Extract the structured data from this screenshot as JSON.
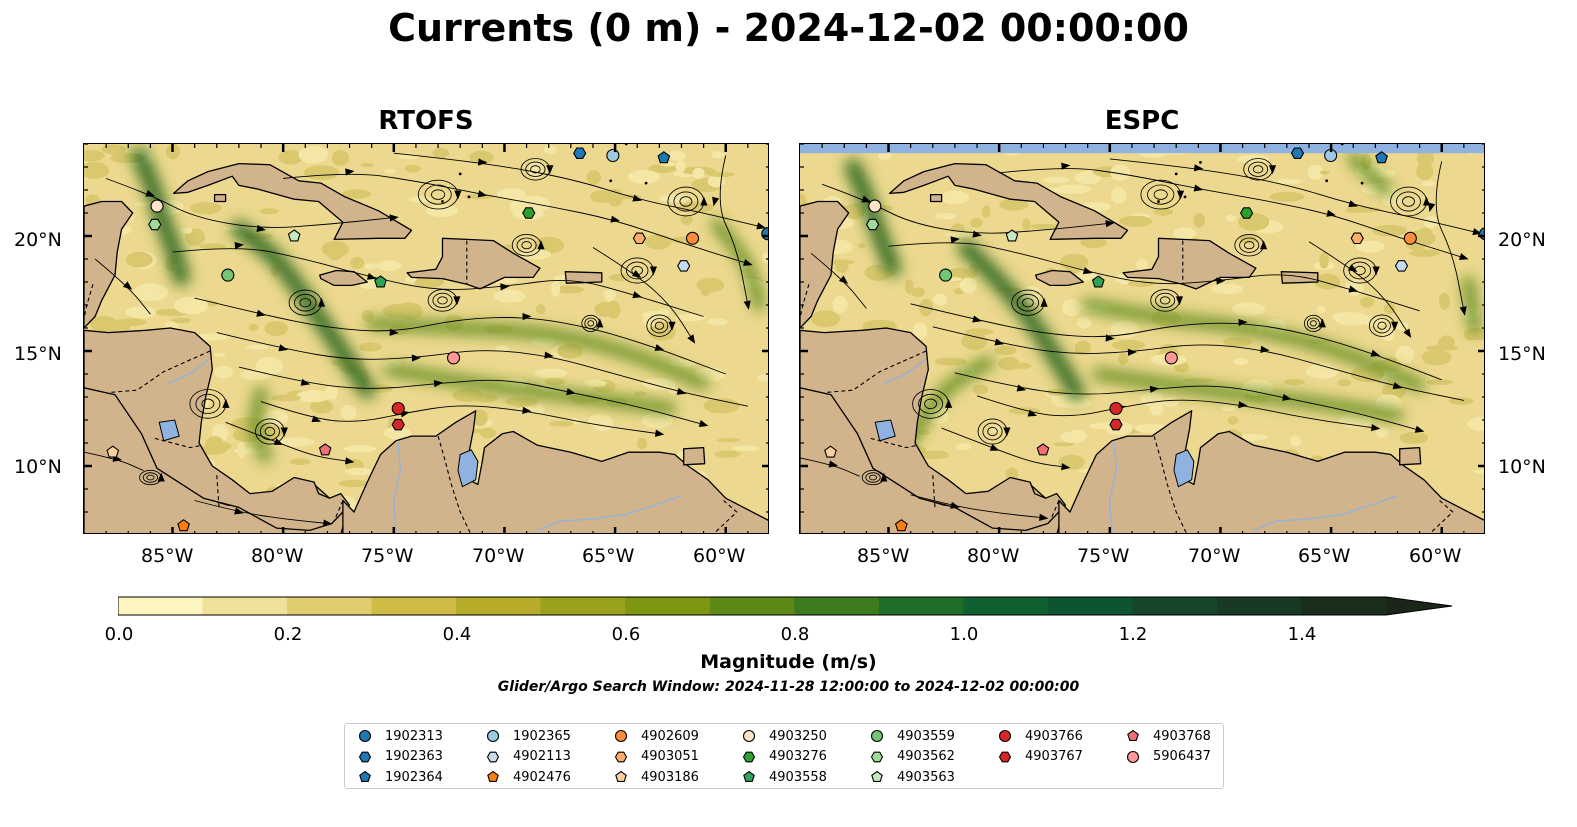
{
  "title": "Currents (0 m) - 2024-12-02 00:00:00",
  "panels": [
    {
      "id": "rtofs",
      "title": "RTOFS"
    },
    {
      "id": "espc",
      "title": "ESPC"
    }
  ],
  "map": {
    "lon_range": [
      -89,
      -58
    ],
    "lat_range": [
      7,
      24
    ],
    "lon_ticks": [
      "85°W",
      "80°W",
      "75°W",
      "70°W",
      "65°W",
      "60°W"
    ],
    "lat_ticks": [
      "20°N",
      "15°N",
      "10°N"
    ],
    "land_color": "#d2b48c",
    "water_color": "#8fb2e0",
    "coastline": "black",
    "borders": "dashed"
  },
  "colorbar": {
    "label": "Magnitude (m/s)",
    "min": 0.0,
    "max": 1.5,
    "step": 0.1,
    "extend": "max",
    "tick_labels": [
      "0.0",
      "0.2",
      "0.4",
      "0.6",
      "0.8",
      "1.0",
      "1.2",
      "1.4"
    ],
    "colors": [
      "#fdf5c0",
      "#efe19a",
      "#e0cd6e",
      "#cfbb45",
      "#b6ac2a",
      "#9aa11d",
      "#7d9712",
      "#5d8a16",
      "#3d7b1e",
      "#206d28",
      "#0f6130",
      "#0d5530",
      "#15462a",
      "#183923",
      "#1a2e1b",
      "#1a2617"
    ]
  },
  "search_window": "Glider/Argo Search Window: 2024-11-28 12:00:00 to 2024-12-02 00:00:00",
  "legend": {
    "columns": [
      [
        {
          "id": "1902313",
          "color": "#1f77b4",
          "marker": "circle"
        },
        {
          "id": "1902363",
          "color": "#1f77b4",
          "marker": "hexagon"
        },
        {
          "id": "1902364",
          "color": "#1f77b4",
          "marker": "pentagon"
        }
      ],
      [
        {
          "id": "1902365",
          "color": "#9ecae1",
          "marker": "circle"
        },
        {
          "id": "4902113",
          "color": "#c6dbef",
          "marker": "hexagon"
        },
        {
          "id": "4902476",
          "color": "#ff7f0e",
          "marker": "pentagon"
        }
      ],
      [
        {
          "id": "4902609",
          "color": "#fd8d3c",
          "marker": "circle"
        },
        {
          "id": "4903051",
          "color": "#fdae6b",
          "marker": "hexagon"
        },
        {
          "id": "4903186",
          "color": "#fdd0a2",
          "marker": "pentagon"
        }
      ],
      [
        {
          "id": "4903250",
          "color": "#fde4c8",
          "marker": "circle"
        },
        {
          "id": "4903276",
          "color": "#2ca02c",
          "marker": "hexagon"
        },
        {
          "id": "4903558",
          "color": "#31a354",
          "marker": "pentagon"
        }
      ],
      [
        {
          "id": "4903559",
          "color": "#74c476",
          "marker": "circle"
        },
        {
          "id": "4903562",
          "color": "#a1d99b",
          "marker": "hexagon"
        },
        {
          "id": "4903563",
          "color": "#c7e9c0",
          "marker": "pentagon"
        }
      ],
      [
        {
          "id": "4903766",
          "color": "#d62728",
          "marker": "circle"
        },
        {
          "id": "4903767",
          "color": "#d62728",
          "marker": "hexagon"
        }
      ],
      [
        {
          "id": "4903768",
          "color": "#f07075",
          "marker": "pentagon"
        },
        {
          "id": "5906437",
          "color": "#ff9896",
          "marker": "circle"
        }
      ]
    ]
  },
  "markers": [
    {
      "id": "1902313",
      "lon": -58.1,
      "lat": 20.1
    },
    {
      "id": "1902363",
      "lon": -66.6,
      "lat": 23.6
    },
    {
      "id": "1902364",
      "lon": -62.8,
      "lat": 23.4
    },
    {
      "id": "1902365",
      "lon": -65.1,
      "lat": 23.5
    },
    {
      "id": "4902113",
      "lon": -61.9,
      "lat": 18.7
    },
    {
      "id": "4902476",
      "lon": -84.5,
      "lat": 7.4
    },
    {
      "id": "4902609",
      "lon": -61.5,
      "lat": 19.9
    },
    {
      "id": "4903051",
      "lon": -63.9,
      "lat": 19.9
    },
    {
      "id": "4903186",
      "lon": -87.7,
      "lat": 10.6
    },
    {
      "id": "4903250",
      "lon": -85.7,
      "lat": 21.3
    },
    {
      "id": "4903276",
      "lon": -68.9,
      "lat": 21.0
    },
    {
      "id": "4903558",
      "lon": -75.6,
      "lat": 18.0
    },
    {
      "id": "4903559",
      "lon": -82.5,
      "lat": 18.3
    },
    {
      "id": "4903562",
      "lon": -85.8,
      "lat": 20.5
    },
    {
      "id": "4903563",
      "lon": -79.5,
      "lat": 20.0
    },
    {
      "id": "4903766",
      "lon": -74.8,
      "lat": 12.5
    },
    {
      "id": "4903767",
      "lon": -74.8,
      "lat": 11.8
    },
    {
      "id": "4903768",
      "lon": -78.1,
      "lat": 10.7
    },
    {
      "id": "5906437",
      "lon": -72.3,
      "lat": 14.7
    }
  ]
}
